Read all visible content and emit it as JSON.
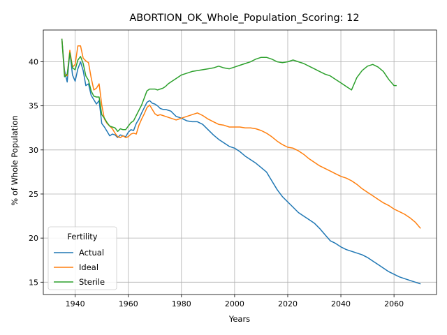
{
  "chart_data": {
    "type": "line",
    "title": "ABORTION_OK_Whole_Population_Scoring: 12",
    "xlabel": "Years",
    "ylabel": "% of Whole Population",
    "xlim": [
      1928,
      2076
    ],
    "ylim": [
      13.6,
      43.6
    ],
    "xticks": [
      1940,
      1960,
      1980,
      2000,
      2020,
      2040,
      2060
    ],
    "yticks": [
      15,
      20,
      25,
      30,
      35,
      40
    ],
    "grid": true,
    "legend": {
      "title": "Fertility",
      "position": "lower-left"
    },
    "colors": {
      "Actual": "#1f77b4",
      "Ideal": "#ff7f0e",
      "Sterile": "#2ca02c"
    },
    "series": [
      {
        "name": "Actual",
        "x": [
          1935,
          1936,
          1937,
          1938,
          1939,
          1940,
          1941,
          1942,
          1943,
          1944,
          1945,
          1946,
          1947,
          1948,
          1949,
          1950,
          1951,
          1952,
          1953,
          1954,
          1955,
          1956,
          1957,
          1958,
          1959,
          1960,
          1961,
          1962,
          1963,
          1964,
          1965,
          1966,
          1967,
          1968,
          1969,
          1970,
          1971,
          1972,
          1973,
          1974,
          1975,
          1976,
          1977,
          1978,
          1980,
          1982,
          1984,
          1986,
          1988,
          1990,
          1992,
          1994,
          1996,
          1998,
          2000,
          2002,
          2004,
          2006,
          2008,
          2010,
          2012,
          2014,
          2016,
          2018,
          2020,
          2022,
          2024,
          2026,
          2028,
          2030,
          2032,
          2034,
          2036,
          2038,
          2040,
          2042,
          2044,
          2046,
          2048,
          2050,
          2052,
          2054,
          2056,
          2058,
          2060,
          2062,
          2064,
          2066,
          2068,
          2070
        ],
        "values": [
          42.6,
          39.0,
          37.7,
          41.2,
          38.5,
          37.8,
          39.2,
          40.0,
          39.0,
          37.3,
          37.5,
          36.2,
          35.7,
          35.2,
          35.6,
          33.0,
          32.6,
          32.1,
          31.6,
          31.8,
          31.7,
          31.4,
          31.7,
          31.6,
          31.5,
          32.0,
          32.3,
          32.2,
          33.0,
          33.5,
          34.2,
          34.8,
          35.4,
          35.6,
          35.3,
          35.2,
          35.0,
          34.7,
          34.6,
          34.6,
          34.5,
          34.4,
          34.1,
          33.8,
          33.6,
          33.3,
          33.2,
          33.2,
          32.9,
          32.3,
          31.7,
          31.2,
          30.8,
          30.4,
          30.2,
          29.8,
          29.3,
          28.9,
          28.5,
          28.0,
          27.5,
          26.5,
          25.5,
          24.7,
          24.1,
          23.5,
          22.9,
          22.5,
          22.1,
          21.7,
          21.1,
          20.4,
          19.7,
          19.4,
          19.0,
          18.7,
          18.5,
          18.3,
          18.1,
          17.8,
          17.4,
          17.0,
          16.6,
          16.2,
          15.9,
          15.6,
          15.4,
          15.2,
          15.0,
          14.8
        ]
      },
      {
        "name": "Ideal",
        "x": [
          1935,
          1936,
          1937,
          1938,
          1939,
          1940,
          1941,
          1942,
          1943,
          1944,
          1945,
          1946,
          1947,
          1948,
          1949,
          1950,
          1951,
          1952,
          1953,
          1954,
          1955,
          1956,
          1957,
          1958,
          1959,
          1960,
          1961,
          1962,
          1963,
          1964,
          1965,
          1966,
          1967,
          1968,
          1969,
          1970,
          1971,
          1972,
          1973,
          1974,
          1975,
          1976,
          1977,
          1978,
          1980,
          1982,
          1984,
          1986,
          1988,
          1990,
          1992,
          1994,
          1996,
          1998,
          2000,
          2002,
          2004,
          2006,
          2008,
          2010,
          2012,
          2014,
          2016,
          2018,
          2020,
          2022,
          2024,
          2026,
          2028,
          2030,
          2032,
          2034,
          2036,
          2038,
          2040,
          2042,
          2044,
          2046,
          2048,
          2050,
          2052,
          2054,
          2056,
          2058,
          2060,
          2062,
          2064,
          2066,
          2068,
          2070
        ],
        "values": [
          42.6,
          38.6,
          38.4,
          41.3,
          39.4,
          39.7,
          41.8,
          41.8,
          40.4,
          40.1,
          39.9,
          38.2,
          36.8,
          37.0,
          37.5,
          35.1,
          33.5,
          33.0,
          32.7,
          32.4,
          31.9,
          31.5,
          31.4,
          31.6,
          31.4,
          31.5,
          31.8,
          31.9,
          31.8,
          32.8,
          33.5,
          34.1,
          34.8,
          35.1,
          34.6,
          34.1,
          33.9,
          34.0,
          33.9,
          33.8,
          33.7,
          33.6,
          33.5,
          33.4,
          33.6,
          33.8,
          34.0,
          34.2,
          33.9,
          33.5,
          33.2,
          32.9,
          32.8,
          32.6,
          32.6,
          32.6,
          32.5,
          32.5,
          32.4,
          32.2,
          31.9,
          31.5,
          31.0,
          30.6,
          30.3,
          30.2,
          29.9,
          29.5,
          29.0,
          28.6,
          28.2,
          27.9,
          27.6,
          27.3,
          27.0,
          26.8,
          26.5,
          26.1,
          25.6,
          25.2,
          24.8,
          24.4,
          24.0,
          23.7,
          23.3,
          23.0,
          22.7,
          22.3,
          21.8,
          21.1
        ]
      },
      {
        "name": "Sterile",
        "x": [
          1935,
          1936,
          1937,
          1938,
          1939,
          1940,
          1941,
          1942,
          1943,
          1944,
          1945,
          1946,
          1947,
          1948,
          1949,
          1950,
          1951,
          1952,
          1953,
          1954,
          1955,
          1956,
          1957,
          1958,
          1959,
          1960,
          1961,
          1962,
          1963,
          1964,
          1965,
          1966,
          1967,
          1968,
          1969,
          1970,
          1971,
          1972,
          1973,
          1974,
          1975,
          1976,
          1977,
          1978,
          1980,
          1982,
          1984,
          1986,
          1988,
          1990,
          1992,
          1994,
          1996,
          1998,
          2000,
          2002,
          2004,
          2006,
          2008,
          2010,
          2012,
          2014,
          2016,
          2018,
          2020,
          2022,
          2024,
          2026,
          2028,
          2030,
          2032,
          2034,
          2036,
          2038,
          2040,
          2042,
          2044,
          2046,
          2048,
          2050,
          2052,
          2054,
          2056,
          2058,
          2060,
          2061
        ],
        "values": [
          42.6,
          38.3,
          38.6,
          41.0,
          39.3,
          39.1,
          40.2,
          40.6,
          39.8,
          38.4,
          37.9,
          36.7,
          36.1,
          36.0,
          36.0,
          34.0,
          33.6,
          33.1,
          32.7,
          32.6,
          32.5,
          32.1,
          32.4,
          32.3,
          32.3,
          32.7,
          33.1,
          33.3,
          33.9,
          34.5,
          35.1,
          35.9,
          36.7,
          36.9,
          36.9,
          36.9,
          36.8,
          36.9,
          37.0,
          37.2,
          37.5,
          37.7,
          37.9,
          38.1,
          38.5,
          38.7,
          38.9,
          39.0,
          39.1,
          39.2,
          39.3,
          39.5,
          39.3,
          39.2,
          39.4,
          39.6,
          39.8,
          40.0,
          40.3,
          40.5,
          40.5,
          40.3,
          40.0,
          39.9,
          40.0,
          40.2,
          40.0,
          39.8,
          39.5,
          39.2,
          38.9,
          38.6,
          38.4,
          38.0,
          37.6,
          37.2,
          36.8,
          38.2,
          39.0,
          39.5,
          39.7,
          39.4,
          38.9,
          38.0,
          37.3,
          37.3
        ]
      }
    ]
  }
}
